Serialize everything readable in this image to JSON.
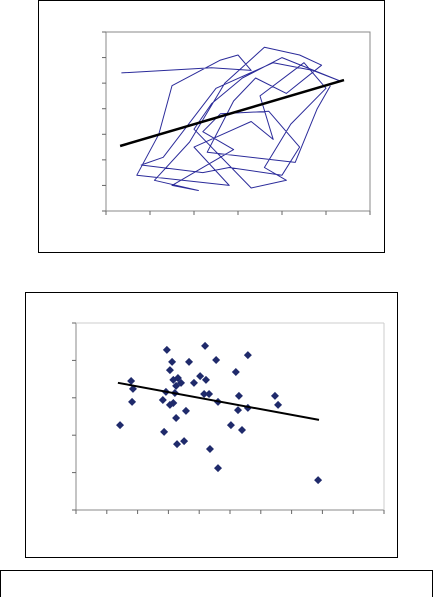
{
  "chart_data": [
    {
      "type": "line",
      "xlim": [
        0,
        6
      ],
      "xticks": [
        0,
        1,
        2,
        3,
        4,
        5,
        6
      ],
      "ylim": [
        0,
        7
      ],
      "yticks": [
        0,
        1,
        2,
        3,
        4,
        5,
        6,
        7
      ],
      "series": [
        {
          "color": "#2b2b9a",
          "width": 1,
          "x": [
            0.35,
            2.4,
            3.3,
            3.0,
            2.6,
            1.5,
            1.2,
            0.7,
            2.8,
            2.0,
            3.3,
            3.8,
            3.5,
            4.5,
            5.0,
            4.2,
            3.6,
            4.1,
            3.3,
            2.0,
            2.4,
            3.1,
            4.0,
            5.3,
            4.7,
            3.8,
            2.5,
            1.3,
            0.8,
            2.2,
            2.8,
            4.0,
            4.4,
            3.7,
            2.6,
            2.2,
            2.9,
            1.5,
            2.1,
            1.1,
            1.9,
            2.7,
            3.6,
            4.4,
            4.9,
            4.1,
            3.4,
            2.9,
            2.3,
            4.3,
            4.8,
            5.1
          ],
          "values": [
            5.4,
            5.6,
            5.5,
            6.1,
            5.9,
            4.9,
            3.0,
            1.4,
            1.0,
            2.5,
            3.5,
            2.8,
            4.5,
            5.8,
            4.8,
            3.4,
            1.7,
            1.2,
            0.9,
            3.2,
            4.2,
            5.2,
            6.0,
            5.1,
            5.5,
            5.8,
            4.8,
            2.1,
            1.8,
            1.5,
            1.7,
            1.4,
            2.5,
            3.9,
            3.8,
            3.1,
            2.4,
            1.0,
            0.8,
            1.2,
            2.7,
            5.0,
            6.4,
            6.1,
            5.7,
            4.6,
            5.2,
            4.3,
            2.3,
            1.9,
            4.0,
            4.9
          ]
        },
        {
          "color": "#000000",
          "width": 2.5,
          "x": [
            0.32,
            5.41
          ],
          "values": [
            2.54,
            5.12
          ]
        }
      ]
    },
    {
      "type": "scatter",
      "xlim": [
        0,
        10
      ],
      "xticks": [
        0,
        1,
        2,
        3,
        4,
        5,
        6,
        7,
        8,
        9,
        10
      ],
      "ylim": [
        0,
        5
      ],
      "yticks": [
        0,
        1,
        2,
        3,
        4,
        5
      ],
      "color": "#1f2a6b",
      "marker": "diamond",
      "x": [
        1.43,
        1.79,
        1.85,
        1.82,
        2.82,
        2.95,
        3.05,
        3.12,
        3.16,
        3.25,
        3.21,
        3.31,
        3.16,
        3.05,
        2.92,
        3.41,
        3.67,
        3.83,
        4.03,
        4.19,
        4.22,
        4.16,
        4.32,
        4.55,
        4.61,
        5.19,
        5.58,
        5.29,
        5.26,
        5.58,
        5.03,
        5.39,
        3.57,
        3.25,
        2.86,
        3.28,
        3.51,
        4.35,
        4.61,
        6.46,
        6.56,
        7.86
      ],
      "values": [
        2.27,
        3.45,
        3.24,
        2.89,
        2.94,
        4.28,
        3.74,
        3.96,
        3.48,
        3.32,
        3.13,
        3.53,
        2.86,
        2.81,
        3.16,
        3.4,
        3.96,
        3.4,
        3.58,
        4.39,
        3.48,
        3.1,
        3.1,
        4.01,
        2.89,
        3.69,
        4.14,
        3.05,
        2.67,
        2.73,
        2.27,
        2.14,
        2.65,
        2.46,
        2.09,
        1.76,
        1.84,
        1.63,
        1.12,
        3.05,
        2.81,
        0.8
      ],
      "trendline": {
        "color": "#000000",
        "x": [
          1.36,
          7.89
        ],
        "values": [
          3.4,
          2.41
        ]
      }
    }
  ]
}
